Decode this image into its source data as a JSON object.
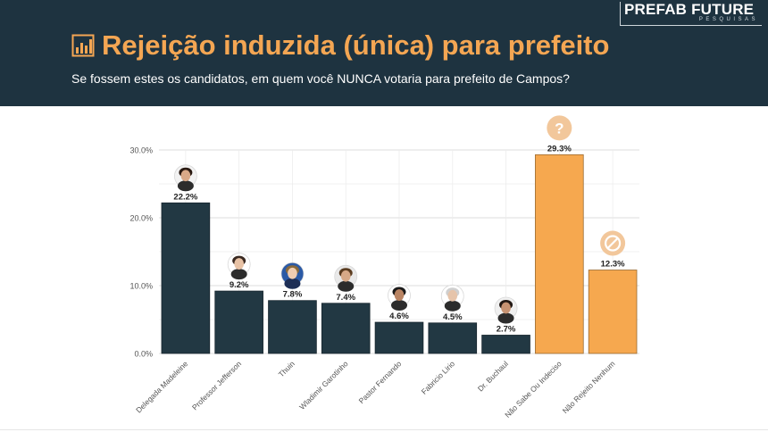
{
  "header": {
    "title": "Rejeição induzida (única) para prefeito",
    "subtitle": "Se fossem estes os candidatos, em quem você NUNCA votaria para prefeito de Campos?",
    "logo_main": "PREFAB FUTURE",
    "logo_sub": "PESQUISAS",
    "title_icon": "bar-chart-icon"
  },
  "colors": {
    "header_bg": "#1e3340",
    "title": "#f4a653",
    "candidate_bar": "#223843",
    "other_bar": "#f6a84f",
    "grid": "#dcdcdc"
  },
  "chart_data": {
    "type": "bar",
    "categories": [
      "Delegada Madeleine",
      "Professor Jefferson",
      "Thuin",
      "Wladimir Garotinho",
      "Pastor Fernando",
      "Fabricio Lirio",
      "Dr. Buchaul",
      "Não Sabe Ou Indeciso",
      "Não Rejeito Nenhum"
    ],
    "values": [
      22.2,
      9.2,
      7.8,
      7.4,
      4.6,
      4.5,
      2.7,
      29.3,
      12.3
    ],
    "data_labels": [
      "22.2%",
      "9.2%",
      "7.8%",
      "7.4%",
      "4.6%",
      "4.5%",
      "2.7%",
      "29.3%",
      "12.3%"
    ],
    "bar_groups": [
      "candidate",
      "candidate",
      "candidate",
      "candidate",
      "candidate",
      "candidate",
      "candidate",
      "other",
      "other"
    ],
    "markers": [
      "avatar-photo",
      "avatar-photo",
      "avatar-photo",
      "avatar-photo",
      "avatar-photo",
      "avatar-photo",
      "avatar-photo",
      "question-icon",
      "no-entry-icon"
    ],
    "ylim": [
      0,
      30
    ],
    "yticks": [
      0,
      10,
      20,
      30
    ],
    "ytick_labels": [
      "0.0%",
      "10.0%",
      "20.0%",
      "30.0%"
    ],
    "grid": true
  }
}
